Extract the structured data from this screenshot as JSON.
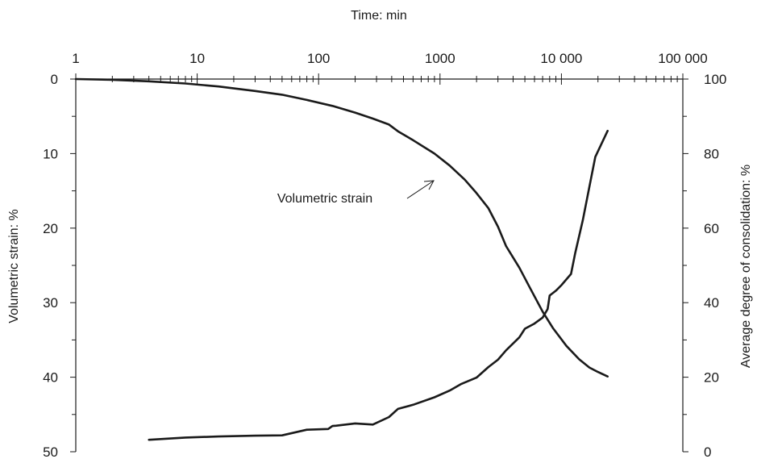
{
  "chart_data": {
    "type": "line",
    "x_axis": {
      "title": "Time: min",
      "scale": "log",
      "range": [
        1,
        100000
      ],
      "tick_values": [
        1,
        10,
        100,
        1000,
        10000,
        100000
      ],
      "tick_labels": [
        "1",
        "10",
        "100",
        "1000",
        "10 000",
        "100 000"
      ],
      "position": "top"
    },
    "y_axis_left": {
      "title": "Volumetric strain: %",
      "range": [
        0,
        50
      ],
      "inverted": true,
      "tick_values": [
        0,
        10,
        20,
        30,
        40,
        50
      ],
      "tick_labels": [
        "0",
        "10",
        "20",
        "30",
        "40",
        "50"
      ]
    },
    "y_axis_right": {
      "title": "Average degree of consolidation: %",
      "range": [
        0,
        100
      ],
      "tick_values": [
        100,
        80,
        60,
        40,
        20,
        0
      ],
      "tick_labels": [
        "100",
        "80",
        "60",
        "40",
        "20",
        "0"
      ]
    },
    "series": [
      {
        "axis": "left",
        "x": [
          1,
          2,
          4,
          8,
          15,
          30,
          50,
          80,
          130,
          200,
          280,
          380,
          450,
          600,
          900,
          1200,
          1600,
          2000,
          2500,
          3000,
          3500,
          4500,
          5500,
          7000,
          8500,
          11000,
          14000,
          17000,
          20000,
          24000
        ],
        "y": [
          0,
          0.1,
          0.3,
          0.6,
          1.0,
          1.6,
          2.1,
          2.8,
          3.6,
          4.5,
          5.3,
          6.1,
          7.0,
          8.2,
          10.0,
          11.6,
          13.5,
          15.3,
          17.3,
          19.8,
          22.4,
          25.3,
          28.0,
          31.2,
          33.4,
          35.8,
          37.6,
          38.7,
          39.3,
          39.9
        ]
      },
      {
        "axis": "right",
        "x": [
          4,
          8,
          15,
          30,
          50,
          80,
          120,
          130,
          140,
          200,
          280,
          380,
          450,
          600,
          900,
          1200,
          1500,
          2000,
          2500,
          3000,
          3500,
          4500,
          5000,
          6000,
          7000,
          7700,
          8000,
          9000,
          10000,
          12000,
          13000,
          15000,
          17000,
          19000,
          24000
        ],
        "y": [
          3.2,
          3.8,
          4.1,
          4.3,
          4.4,
          5.9,
          6.1,
          6.9,
          7.0,
          7.6,
          7.3,
          9.3,
          11.5,
          12.6,
          14.6,
          16.4,
          18.2,
          19.9,
          22.7,
          24.7,
          27.2,
          30.7,
          33.0,
          34.4,
          36.0,
          38.3,
          41.9,
          43.2,
          44.7,
          47.7,
          53.4,
          62.1,
          71.1,
          79.1,
          86.1
        ]
      }
    ],
    "annotations": [
      {
        "text": "Volumetric strain",
        "points_to": "left-series",
        "at_x": 1600
      }
    ],
    "grid": false,
    "legend": "none"
  }
}
